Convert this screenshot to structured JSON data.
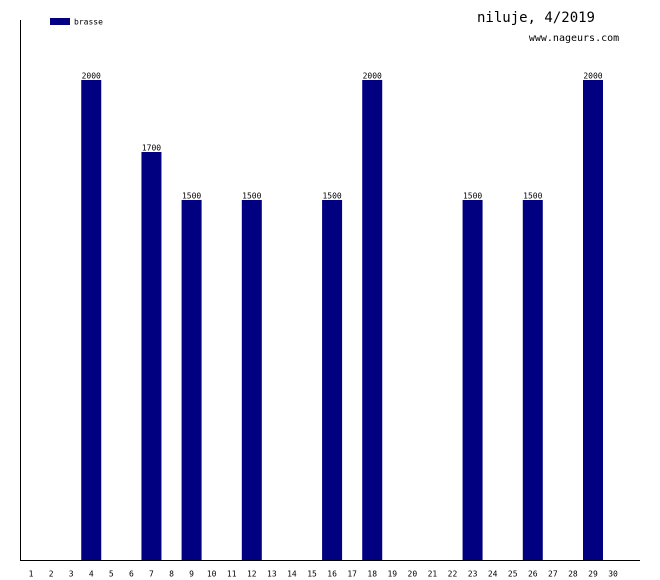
{
  "chart_data": {
    "type": "bar",
    "title": "niluje, 4/2019",
    "subtitle": "www.nageurs.com",
    "categories": [
      "1",
      "2",
      "3",
      "4",
      "5",
      "6",
      "7",
      "8",
      "9",
      "10",
      "11",
      "12",
      "13",
      "14",
      "15",
      "16",
      "17",
      "18",
      "19",
      "20",
      "21",
      "22",
      "23",
      "24",
      "25",
      "26",
      "27",
      "28",
      "29",
      "30"
    ],
    "series": [
      {
        "name": "brasse",
        "color": "#000080",
        "values": [
          null,
          null,
          null,
          2000,
          null,
          null,
          1700,
          null,
          1500,
          null,
          null,
          1500,
          null,
          null,
          null,
          1500,
          null,
          2000,
          null,
          null,
          null,
          null,
          1500,
          null,
          null,
          1500,
          null,
          null,
          2000,
          null
        ]
      }
    ],
    "ylim": [
      0,
      2250
    ],
    "legend": "top-left"
  }
}
